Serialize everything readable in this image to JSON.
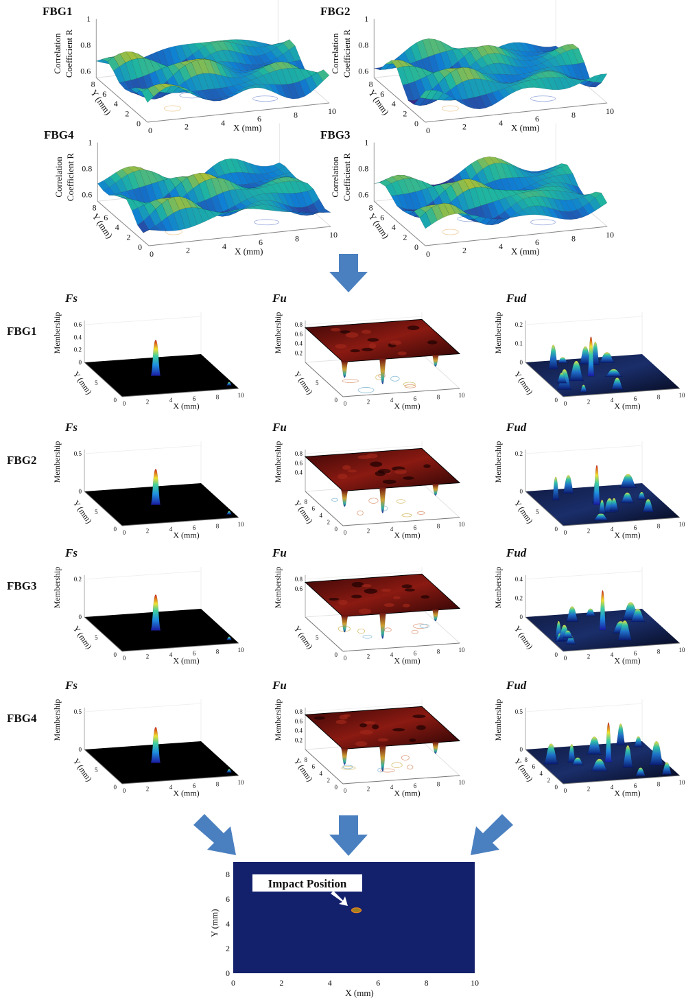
{
  "top_panels": [
    {
      "title": "FBG1",
      "z_label": [
        "Correlation",
        "Coefficient R"
      ],
      "z_ticks": [
        1,
        0.8,
        0.6
      ],
      "y_label": "Y (mm)",
      "y_ticks": [
        8,
        6,
        4,
        2,
        0
      ],
      "x_label": "X (mm)",
      "x_ticks": [
        0,
        2,
        4,
        6,
        8,
        10
      ]
    },
    {
      "title": "FBG2",
      "z_label": [
        "Correlation",
        "Coefficient R"
      ],
      "z_ticks": [
        1,
        0.8,
        0.6
      ],
      "y_label": "Y (mm)",
      "y_ticks": [
        8,
        6,
        4,
        2,
        0
      ],
      "x_label": "X (mm)",
      "x_ticks": [
        0,
        2,
        4,
        6,
        8,
        10
      ]
    },
    {
      "title": "FBG4",
      "z_label": [
        "Correlation",
        "Coefficient R"
      ],
      "z_ticks": [
        1,
        0.8,
        0.6
      ],
      "y_label": "Y (mm)",
      "y_ticks": [
        8,
        6,
        4,
        2,
        0
      ],
      "x_label": "X (mm)",
      "x_ticks": [
        0,
        2,
        4,
        6,
        8,
        10
      ]
    },
    {
      "title": "FBG3",
      "z_label": [
        "Correlation",
        "Coefficient R"
      ],
      "z_ticks": [
        1,
        0.8,
        0.6
      ],
      "y_label": "Y (mm)",
      "y_ticks": [
        8,
        6,
        4,
        2,
        0
      ],
      "x_label": "X (mm)",
      "x_ticks": [
        0,
        2,
        4,
        6,
        8,
        10
      ]
    }
  ],
  "rows": [
    {
      "label": "FBG1",
      "panels": [
        {
          "title": "Fs",
          "z_label": "Membership",
          "z_ticks": [
            0.6,
            0.4,
            0.2,
            0
          ],
          "y_label": "Y (mm)",
          "y_ticks": [
            5,
            0
          ],
          "x_label": "X (mm)",
          "x_ticks": [
            0,
            2,
            4,
            6,
            8,
            10
          ]
        },
        {
          "title": "Fu",
          "z_label": "Membership",
          "z_ticks": [
            0.8,
            0.6,
            0.4,
            0.2
          ],
          "y_label": "Y (mm)",
          "y_ticks": [
            5,
            0
          ],
          "x_label": "X (mm)",
          "x_ticks": [
            0,
            2,
            4,
            6,
            8,
            10
          ]
        },
        {
          "title": "Fud",
          "z_label": "Membership",
          "z_ticks": [
            0.2,
            0.1,
            0
          ],
          "y_label": "Y (mm)",
          "y_ticks": [
            0
          ],
          "x_label": "X (mm)",
          "x_ticks": [
            0,
            2,
            4,
            6,
            8,
            10
          ]
        }
      ]
    },
    {
      "label": "FBG2",
      "panels": [
        {
          "title": "Fs",
          "z_label": "Membership",
          "z_ticks": [
            0.5,
            0
          ],
          "y_label": "Y (mm)",
          "y_ticks": [
            5,
            0
          ],
          "x_label": "X (mm)",
          "x_ticks": [
            0,
            2,
            4,
            6,
            8,
            10
          ]
        },
        {
          "title": "Fu",
          "z_label": "Membership",
          "z_ticks": [
            0.8,
            0.6,
            0.4
          ],
          "y_label": "Y (mm)",
          "y_ticks": [
            8,
            6,
            4,
            2,
            0
          ],
          "x_label": "X (mm)",
          "x_ticks": [
            0,
            2,
            4,
            6,
            8,
            10
          ]
        },
        {
          "title": "Fud",
          "z_label": "Membership",
          "z_ticks": [
            0.2,
            0
          ],
          "y_label": "Y (mm)",
          "y_ticks": [
            5,
            0
          ],
          "x_label": "X (mm)",
          "x_ticks": [
            0,
            2,
            4,
            6,
            8,
            10
          ]
        }
      ]
    },
    {
      "label": "FBG3",
      "panels": [
        {
          "title": "Fs",
          "z_label": "Membership",
          "z_ticks": [
            0.2,
            0
          ],
          "y_label": "Y (mm)",
          "y_ticks": [
            5,
            0
          ],
          "x_label": "X (mm)",
          "x_ticks": [
            0,
            2,
            4,
            6,
            8,
            10
          ]
        },
        {
          "title": "Fu",
          "z_label": "Membership",
          "z_ticks": [
            0.8,
            0.6
          ],
          "y_label": "Y (mm)",
          "y_ticks": [
            5,
            0
          ],
          "x_label": "X (mm)",
          "x_ticks": [
            0,
            2,
            4,
            6,
            8,
            10
          ]
        },
        {
          "title": "Fud",
          "z_label": "Membership",
          "z_ticks": [
            0.4,
            0.2,
            0
          ],
          "y_label": "Y (mm)",
          "y_ticks": [
            0
          ],
          "x_label": "X (mm)",
          "x_ticks": [
            0,
            2,
            4,
            6,
            8,
            10
          ]
        }
      ]
    },
    {
      "label": "FBG4",
      "panels": [
        {
          "title": "Fs",
          "z_label": "Membership",
          "z_ticks": [
            0.5,
            0
          ],
          "y_label": "Y (mm)",
          "y_ticks": [
            5,
            0
          ],
          "x_label": "X (mm)",
          "x_ticks": [
            0,
            2,
            4,
            6,
            8,
            10
          ]
        },
        {
          "title": "Fu",
          "z_label": "Membership",
          "z_ticks": [
            0.8,
            0.6,
            0.4,
            0.2
          ],
          "y_label": "Y (mm)",
          "y_ticks": [
            8,
            6,
            4,
            2,
            0
          ],
          "x_label": "X (mm)",
          "x_ticks": [
            0,
            2,
            4,
            6,
            8,
            10
          ]
        },
        {
          "title": "Fud",
          "z_label": "Membership",
          "z_ticks": [
            0.5,
            0
          ],
          "y_label": "Y (mm)",
          "y_ticks": [
            8,
            6,
            4,
            2,
            0
          ],
          "x_label": "X (mm)",
          "x_ticks": [
            0,
            2,
            4,
            6,
            8,
            10
          ]
        }
      ]
    }
  ],
  "result": {
    "annotation": "Impact Position",
    "y_label": "Y (mm)",
    "x_label": "X (mm)",
    "y_ticks": [
      0,
      2,
      4,
      6,
      8
    ],
    "x_ticks": [
      0,
      2,
      4,
      6,
      8,
      10
    ]
  }
}
